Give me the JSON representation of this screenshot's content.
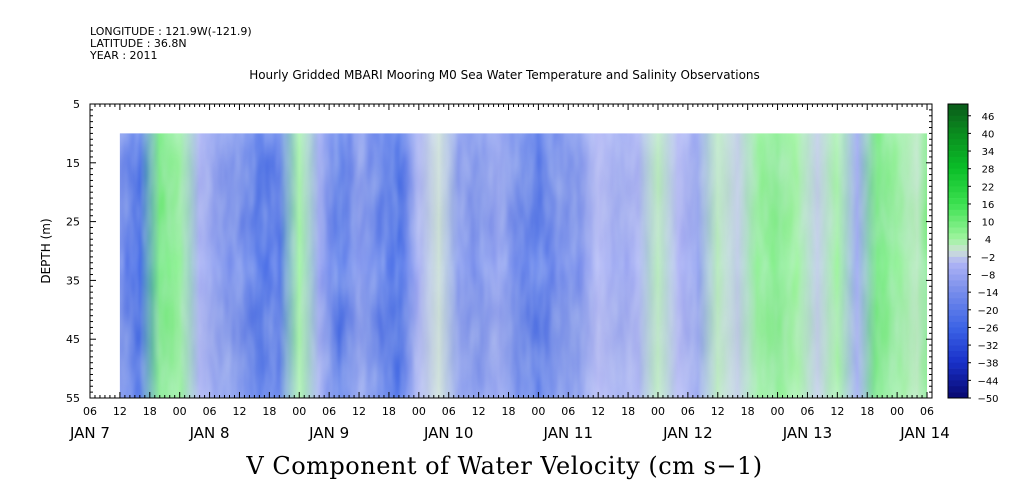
{
  "header": {
    "longitude": "LONGITUDE : 121.9W(-121.9)",
    "latitude": "LATITUDE : 36.8N",
    "year": "YEAR : 2011"
  },
  "chart_data": {
    "type": "heatmap",
    "title": "Hourly Gridded MBARI Mooring M0 Sea Water Temperature and Salinity Observations",
    "xlabel": "V Component of Water Velocity (cm s−1)",
    "ylabel": "DEPTH (m)",
    "y_ticks": [
      5,
      15,
      25,
      35,
      45,
      55
    ],
    "y_labels": [
      "5",
      "15",
      "25",
      "35",
      "45",
      "55"
    ],
    "ylim": [
      55,
      5
    ],
    "hour_ticks": [
      "06",
      "12",
      "18",
      "00",
      "06",
      "12",
      "18",
      "00",
      "06",
      "12",
      "18",
      "00",
      "06",
      "12",
      "18",
      "00",
      "06",
      "12",
      "18",
      "00",
      "06",
      "12",
      "18",
      "00",
      "06",
      "12",
      "18",
      "00",
      "06"
    ],
    "day_labels": [
      "JAN  7",
      "JAN  8",
      "JAN  9",
      "JAN 10",
      "JAN 11",
      "JAN 12",
      "JAN 13",
      "JAN 14"
    ],
    "x_range": [
      "JAN 7 06:00",
      "JAN 14 07:00"
    ],
    "data_depth_range": [
      10,
      55
    ],
    "data_time_range": [
      "JAN 7 12:00",
      "JAN 14 06:00"
    ],
    "colorbar": {
      "labels": [
        "46",
        "40",
        "34",
        "28",
        "22",
        "16",
        "10",
        "4",
        "−2",
        "−8",
        "−14",
        "−20",
        "−26",
        "−32",
        "−38",
        "−44",
        "−50"
      ],
      "range": [
        -50,
        50
      ],
      "step": 2
    },
    "columns": [
      {
        "hour": 0,
        "value": -16
      },
      {
        "hour": 4,
        "value": -26
      },
      {
        "hour": 8,
        "value": 10
      },
      {
        "hour": 12,
        "value": 6
      },
      {
        "hour": 16,
        "value": -6
      },
      {
        "hour": 20,
        "value": -12
      },
      {
        "hour": 24,
        "value": -16
      },
      {
        "hour": 28,
        "value": -24
      },
      {
        "hour": 32,
        "value": -22
      },
      {
        "hour": 36,
        "value": 4
      },
      {
        "hour": 40,
        "value": -8
      },
      {
        "hour": 44,
        "value": -24
      },
      {
        "hour": 48,
        "value": -12
      },
      {
        "hour": 52,
        "value": -20
      },
      {
        "hour": 56,
        "value": -26
      },
      {
        "hour": 60,
        "value": -6
      },
      {
        "hour": 64,
        "value": 0
      },
      {
        "hour": 68,
        "value": -12
      },
      {
        "hour": 72,
        "value": -14
      },
      {
        "hour": 76,
        "value": -10
      },
      {
        "hour": 80,
        "value": -18
      },
      {
        "hour": 84,
        "value": -22
      },
      {
        "hour": 88,
        "value": -16
      },
      {
        "hour": 92,
        "value": -14
      },
      {
        "hour": 96,
        "value": -4
      },
      {
        "hour": 100,
        "value": -8
      },
      {
        "hour": 104,
        "value": -6
      },
      {
        "hour": 108,
        "value": 2
      },
      {
        "hour": 112,
        "value": -4
      },
      {
        "hour": 116,
        "value": -10
      },
      {
        "hour": 120,
        "value": 2
      },
      {
        "hour": 124,
        "value": -2
      },
      {
        "hour": 128,
        "value": 6
      },
      {
        "hour": 132,
        "value": 8
      },
      {
        "hour": 136,
        "value": 4
      },
      {
        "hour": 140,
        "value": -2
      },
      {
        "hour": 144,
        "value": 4
      },
      {
        "hour": 148,
        "value": -8
      },
      {
        "hour": 152,
        "value": 10
      },
      {
        "hour": 156,
        "value": 6
      },
      {
        "hour": 160,
        "value": 2
      },
      {
        "hour": 164,
        "value": 8
      }
    ]
  }
}
